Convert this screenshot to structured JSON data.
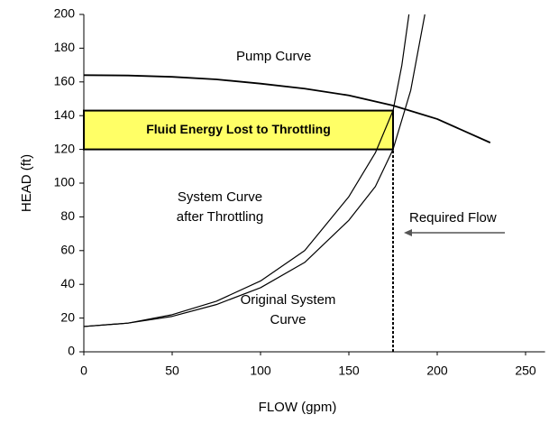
{
  "chart_data": {
    "type": "line",
    "xlabel": "FLOW (gpm)",
    "ylabel": "HEAD (ft)",
    "xlim": [
      0,
      260
    ],
    "ylim": [
      0,
      200
    ],
    "xticks": [
      0,
      50,
      100,
      150,
      200,
      250
    ],
    "yticks": [
      0,
      20,
      40,
      60,
      80,
      100,
      120,
      140,
      160,
      180,
      200
    ],
    "grid": false,
    "series": [
      {
        "name": "Pump Curve",
        "color": "#000000",
        "x": [
          0,
          25,
          50,
          75,
          100,
          125,
          150,
          175,
          200,
          230
        ],
        "values": [
          164,
          163.8,
          163,
          161.5,
          159,
          156,
          152,
          146,
          138,
          124
        ]
      },
      {
        "name": "System Curve after Throttling",
        "color": "#000000",
        "x": [
          0,
          25,
          50,
          75,
          100,
          125,
          150,
          165,
          175,
          180,
          184
        ],
        "values": [
          15,
          17,
          22,
          30,
          42,
          60,
          92,
          118,
          143,
          170,
          200
        ]
      },
      {
        "name": "Original System Curve",
        "color": "#000000",
        "x": [
          0,
          25,
          50,
          75,
          100,
          125,
          150,
          165,
          175,
          185,
          193
        ],
        "values": [
          15,
          17,
          21,
          28,
          38,
          53,
          78,
          98,
          120,
          155,
          200
        ]
      }
    ],
    "throttling_loss": {
      "label": "Fluid Energy Lost to Throttling",
      "color": "#ffff66",
      "x": [
        0,
        175
      ],
      "y": [
        120,
        143
      ]
    },
    "required_flow": {
      "label": "Required Flow",
      "x": 175,
      "y": 120
    }
  }
}
